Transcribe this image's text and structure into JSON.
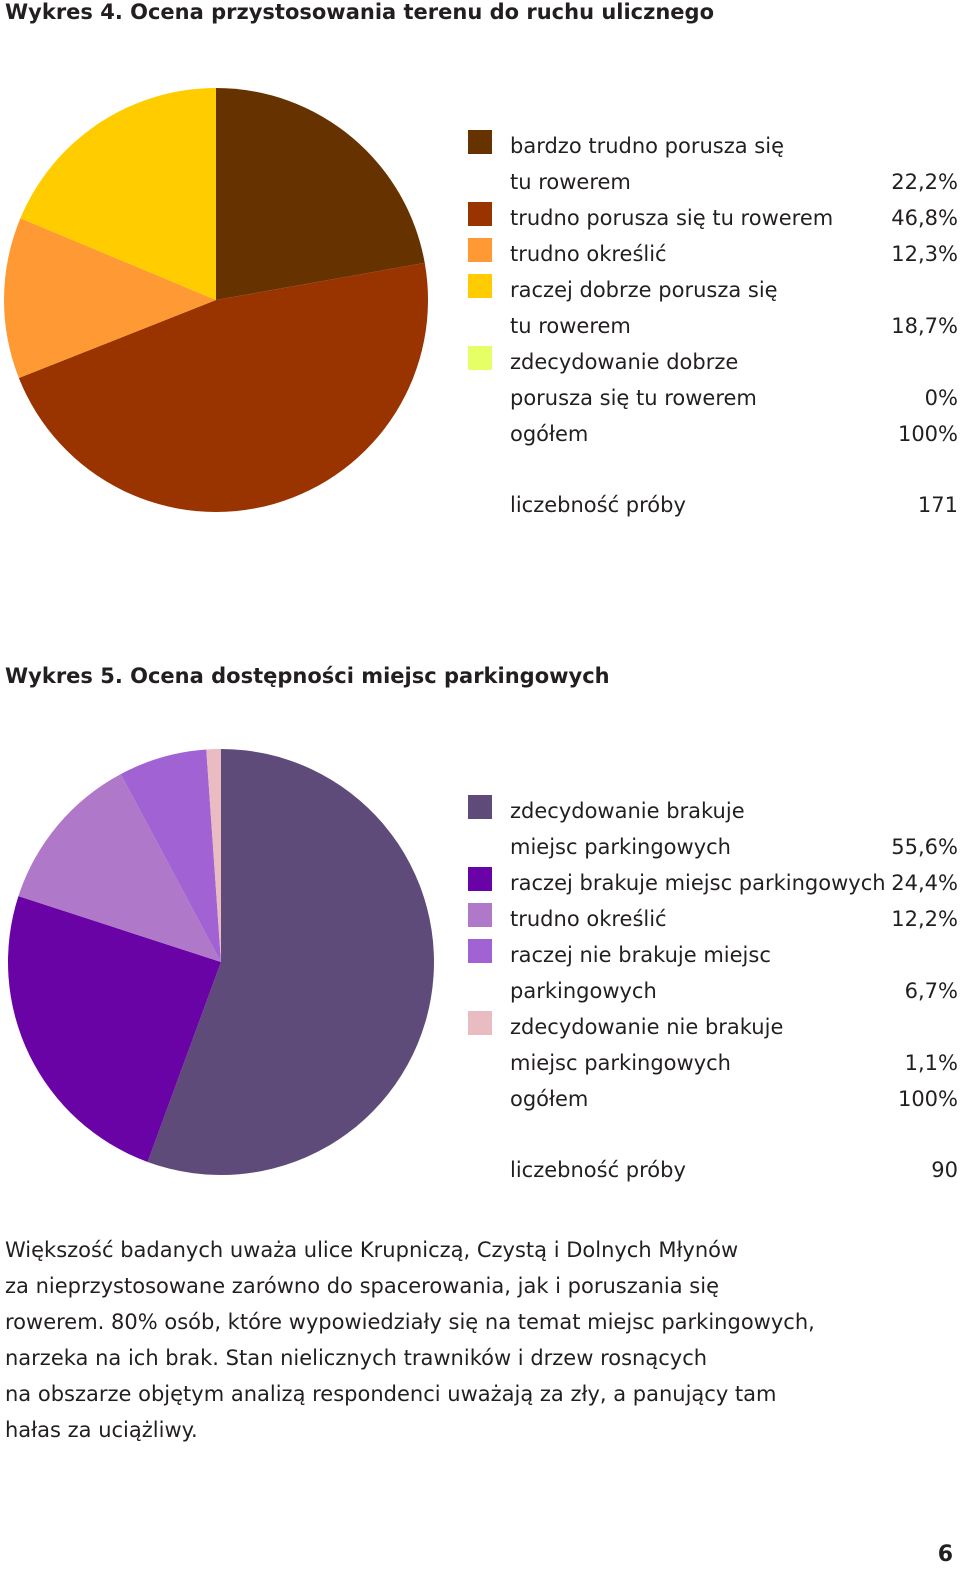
{
  "chart_data": [
    {
      "type": "pie",
      "title": "Wykres 4. Ocena przystosowania terenu do ruchu ulicznego",
      "legend_position": "right",
      "slices": [
        {
          "label_lines": [
            "bardzo trudno porusza się",
            "tu rowerem"
          ],
          "value": 22.2,
          "value_label": "22,2%",
          "color": "#663300"
        },
        {
          "label_lines": [
            "trudno porusza się tu rowerem"
          ],
          "value": 46.8,
          "value_label": "46,8%",
          "color": "#993300"
        },
        {
          "label_lines": [
            "trudno określić"
          ],
          "value": 12.3,
          "value_label": "12,3%",
          "color": "#FF9933"
        },
        {
          "label_lines": [
            "raczej dobrze porusza się",
            "tu rowerem"
          ],
          "value": 18.7,
          "value_label": "18,7%",
          "color": "#FFCC00"
        },
        {
          "label_lines": [
            "zdecydowanie dobrze",
            "porusza się tu rowerem"
          ],
          "value": 0,
          "value_label": "0%",
          "color": "#E6FF66"
        }
      ],
      "total_label": "ogółem",
      "total_value": "100%",
      "sample_label": "liczebność próby",
      "sample_value": "171"
    },
    {
      "type": "pie",
      "title": "Wykres 5. Ocena dostępności miejsc parkingowych",
      "legend_position": "right",
      "slices": [
        {
          "label_lines": [
            "zdecydowanie brakuje",
            "miejsc parkingowych"
          ],
          "value": 55.6,
          "value_label": "55,6%",
          "color": "#5F4B7A"
        },
        {
          "label_lines": [
            "raczej brakuje miejsc parkingowych"
          ],
          "value": 24.4,
          "value_label": "24,4%",
          "color": "#6A03A6"
        },
        {
          "label_lines": [
            "trudno określić"
          ],
          "value": 12.2,
          "value_label": "12,2%",
          "color": "#B078C8"
        },
        {
          "label_lines": [
            "raczej nie brakuje miejsc",
            "parkingowych"
          ],
          "value": 6.7,
          "value_label": "6,7%",
          "color": "#A162D4"
        },
        {
          "label_lines": [
            "zdecydowanie nie brakuje",
            "miejsc parkingowych"
          ],
          "value": 1.1,
          "value_label": "1,1%",
          "color": "#E8BCC0"
        }
      ],
      "total_label": "ogółem",
      "total_value": "100%",
      "sample_label": "liczebność próby",
      "sample_value": "90"
    }
  ],
  "paragraph_lines": [
    "Większość badanych uważa ulice Krupniczą, Czystą i Dolnych Młynów",
    "za nieprzystosowane zarówno do spacerowania, jak i poruszania się",
    "rowerem. 80% osób, które wypowiedziały się na temat miejsc parkingowych,",
    "narzeka na ich brak. Stan nielicznych trawników i drzew rosnących",
    "na obszarze objętym analizą respondenci uważają za zły, a panujący tam",
    "hałas za uciążliwy."
  ],
  "page_number": "6"
}
